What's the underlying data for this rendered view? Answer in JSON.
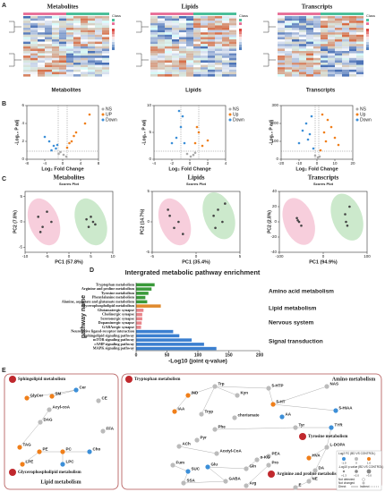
{
  "panel_labels": [
    "A",
    "B",
    "C",
    "D",
    "E"
  ],
  "chart_data": [
    {
      "type": "heatmap",
      "title": "Metabolites",
      "x_label": "Metabolites",
      "legend_title": "Class"
    },
    {
      "type": "heatmap",
      "title": "Lipids",
      "x_label": "Lipids",
      "legend_title": "Class"
    },
    {
      "type": "heatmap",
      "title": "Transcripts",
      "x_label": "Transcripts",
      "legend_title": "Class"
    },
    {
      "type": "scatter",
      "x_label": "Log₂ Fold Change",
      "y_label": "-Log₁₀ P adj",
      "xlim": [
        -8,
        8
      ],
      "xticks": [
        -8,
        -4,
        0,
        4,
        8
      ],
      "ylim": [
        0,
        6
      ],
      "yticks": [
        0,
        2,
        4,
        6
      ],
      "series": [
        {
          "name": "NS",
          "color": "#aaaaaa",
          "x": [
            0.2,
            -0.5,
            0.8,
            -0.9
          ],
          "y": [
            0.5,
            0.8,
            0.3,
            0.6
          ]
        },
        {
          "name": "UP",
          "color": "#f07f1a",
          "x": [
            1,
            2,
            1.5,
            3,
            5,
            6,
            2.5
          ],
          "y": [
            1.3,
            2,
            1.8,
            3,
            4,
            5,
            2.6
          ]
        },
        {
          "name": "Down",
          "color": "#3c8fd8",
          "x": [
            -2,
            -3,
            -1.5,
            -4,
            -2.5,
            -1.2
          ],
          "y": [
            1.5,
            2,
            1.2,
            2.5,
            1,
            1.6
          ]
        }
      ]
    },
    {
      "type": "scatter",
      "x_label": "Log₂ Fold Change",
      "y_label": "-Log₁₀ P adj",
      "xlim": [
        -4,
        4
      ],
      "xticks": [
        -4,
        -2,
        0,
        2,
        4
      ],
      "ylim": [
        0,
        10
      ],
      "yticks": [
        0,
        5,
        10
      ],
      "series": [
        {
          "name": "NS",
          "color": "#aaaaaa",
          "x": [
            0.1,
            -0.3,
            0.4,
            0.6
          ],
          "y": [
            0.5,
            1,
            0.8,
            1.2
          ]
        },
        {
          "name": "Up",
          "color": "#f07f1a",
          "x": [
            0.6,
            1,
            1.4,
            0.8,
            2
          ],
          "y": [
            3,
            5,
            2.5,
            6,
            3.5
          ]
        },
        {
          "name": "Down",
          "color": "#3c8fd8",
          "x": [
            -0.6,
            -1,
            -1.5,
            -0.8,
            -2,
            -1.2
          ],
          "y": [
            3,
            6,
            4,
            8,
            3,
            9
          ]
        }
      ]
    },
    {
      "type": "scatter",
      "x_label": "Log₂ Fold Change",
      "y_label": "-Log₁₀ P adj",
      "xlim": [
        -20,
        20
      ],
      "xticks": [
        -20,
        -10,
        0,
        10,
        20
      ],
      "ylim": [
        0,
        300
      ],
      "yticks": [
        0,
        100,
        200,
        300
      ],
      "series": [
        {
          "name": "NS",
          "color": "#aaaaaa",
          "x": [
            0.5,
            -1,
            1.5
          ],
          "y": [
            10,
            20,
            15
          ]
        },
        {
          "name": "Up",
          "color": "#f07f1a",
          "x": [
            2,
            4,
            6,
            8,
            10,
            12,
            3,
            5
          ],
          "y": [
            50,
            150,
            220,
            180,
            120,
            80,
            250,
            100
          ]
        },
        {
          "name": "Down",
          "color": "#3c8fd8",
          "x": [
            -2,
            -4,
            -6,
            -8,
            -10,
            -3,
            -5
          ],
          "y": [
            60,
            140,
            200,
            160,
            90,
            240,
            110
          ]
        }
      ]
    },
    {
      "type": "scatter",
      "title": "Metabolites",
      "subtitle": "Scores Plot",
      "x_label": "PC1 (57.8%)",
      "y_label": "PC2 (7.8%)",
      "xlim": [
        -10,
        10
      ],
      "xticks": [
        -10,
        -5,
        0,
        5,
        10
      ],
      "ylim": [
        -6,
        6
      ],
      "yticks": [
        -5,
        0,
        5
      ],
      "series": [
        {
          "color": "#e8739a",
          "x": [
            -7,
            -6,
            -5,
            -4,
            -6.5
          ],
          "y": [
            1,
            -1,
            2,
            0,
            -2
          ]
        },
        {
          "color": "#6cbf6c",
          "x": [
            4,
            5,
            6,
            5.5,
            4.5
          ],
          "y": [
            0.5,
            1,
            -0.5,
            0,
            -1
          ]
        }
      ]
    },
    {
      "type": "scatter",
      "title": "Lipids",
      "subtitle": "Scores Plot",
      "x_label": "PC1 (35.4%)",
      "y_label": "PC2 (14.7%)",
      "xlim": [
        -5,
        5
      ],
      "xticks": [
        -5,
        0,
        5
      ],
      "ylim": [
        -5,
        5
      ],
      "yticks": [
        -5,
        0,
        5
      ],
      "series": [
        {
          "color": "#e8739a",
          "x": [
            -3,
            -2.5,
            -2,
            -1.5,
            -3.2
          ],
          "y": [
            1,
            -1,
            0,
            -2,
            2
          ]
        },
        {
          "color": "#6cbf6c",
          "x": [
            2,
            2.5,
            3,
            2.2,
            3.3
          ],
          "y": [
            1,
            2,
            0,
            -1,
            3
          ]
        }
      ]
    },
    {
      "type": "scatter",
      "title": "Transcripts",
      "subtitle": "Scores Plot",
      "x_label": "PC1 (94.9%)",
      "y_label": "PC2 (2.8%)",
      "xlim": [
        -100,
        100
      ],
      "xticks": [
        -100,
        0,
        100
      ],
      "ylim": [
        -40,
        40
      ],
      "yticks": [
        -40,
        -20,
        0,
        20,
        40
      ],
      "series": [
        {
          "color": "#e8739a",
          "x": [
            -60,
            -55,
            -50,
            -58
          ],
          "y": [
            5,
            0,
            -5,
            2
          ]
        },
        {
          "color": "#6cbf6c",
          "x": [
            50,
            55,
            60,
            52
          ],
          "y": [
            10,
            -5,
            20,
            0
          ]
        }
      ]
    },
    {
      "type": "bar",
      "title": "Intergrated metabolic pathway enrichment",
      "y_label": "pathway name",
      "x_label": "-Log10 (joint q-value)",
      "xlim": [
        0,
        200
      ],
      "xticks": [
        0,
        50,
        100,
        150,
        200
      ],
      "categories": [
        "Tryptophan metabolism",
        "Arginine and proline metabolism",
        "Tyrosine metabolism",
        "Phenylalanine metabolism",
        "Alanine, aspartate and glutamate metabolism",
        "Glycerophospholipid metabolism",
        "Glutamatergic synapse",
        "Cholinergic synapse",
        "Serotonergic synapse",
        "Dopaminergic synapse",
        "GABAergic synapse",
        "Neuroactive ligand-receptor interaction",
        "Sphingolipid signaling pathway",
        "mTOR signaling pathway",
        "cAMP signaling pathway",
        "MAPK signaling pathway"
      ],
      "values": [
        30,
        25,
        20,
        15,
        18,
        40,
        12,
        10,
        10,
        9,
        8,
        60,
        70,
        90,
        110,
        130
      ],
      "colors": [
        "#3a9a3a",
        "#3a9a3a",
        "#3a9a3a",
        "#3a9a3a",
        "#3a9a3a",
        "#e08a2e",
        "#e8848a",
        "#e8848a",
        "#e8848a",
        "#e8848a",
        "#e8848a",
        "#3b7fd0",
        "#3b7fd0",
        "#3b7fd0",
        "#3b7fd0",
        "#3b7fd0"
      ],
      "groups": [
        {
          "name": "Amino acid metabolism",
          "color": "#3a9a3a"
        },
        {
          "name": "Lipid metabolism",
          "color": "#e08a2e"
        },
        {
          "name": "Nervous system",
          "color": "#e8848a"
        },
        {
          "name": "Signal transduction",
          "color": "#3b7fd0"
        }
      ]
    }
  ],
  "diagram": {
    "boxes": [
      "Lipid metabolism",
      "Amino metabolism"
    ],
    "pathways": [
      "Sphingolipid metabolism",
      "Glycerophospholipid metabolism",
      "Tryptophan metabolism",
      "Tyrosine metabolism",
      "Arginine and proline metabolism"
    ],
    "nodes": [
      "Cer",
      "GlyCer",
      "SM",
      "Acyl-coA",
      "CE",
      "DAG",
      "FFA",
      "TAG",
      "PE",
      "PC",
      "Cho",
      "LPE",
      "LPC",
      "Trp",
      "IND",
      "Kyn",
      "5-HTP",
      "NAS",
      "5-HT",
      "AA",
      "5-HIAA",
      "IAA",
      "Tryp",
      "chorismate",
      "Phe",
      "Pyr",
      "Tyr",
      "TYR",
      "L-DOPA",
      "ACh",
      "Acetyl-CoA",
      "PEA",
      "Glu",
      "GABA",
      "Gln",
      "α-KG",
      "HVA",
      "DA",
      "NE",
      "E",
      "Pro",
      "Arg",
      "SSA",
      "Fum",
      "SUC"
    ],
    "legend": {
      "fc": "Log2 FC (BD VS CONTROL)",
      "fc_ticks": [
        "-1.0",
        "0",
        "1.0"
      ],
      "p": "-Log10 p-value (BD VS CONTROL)",
      "p_ticks": [
        ">1.3",
        ">2.0",
        ">3.0"
      ],
      "items": [
        "Not detected",
        "Not changed",
        "Direct",
        "Indirect"
      ]
    }
  }
}
